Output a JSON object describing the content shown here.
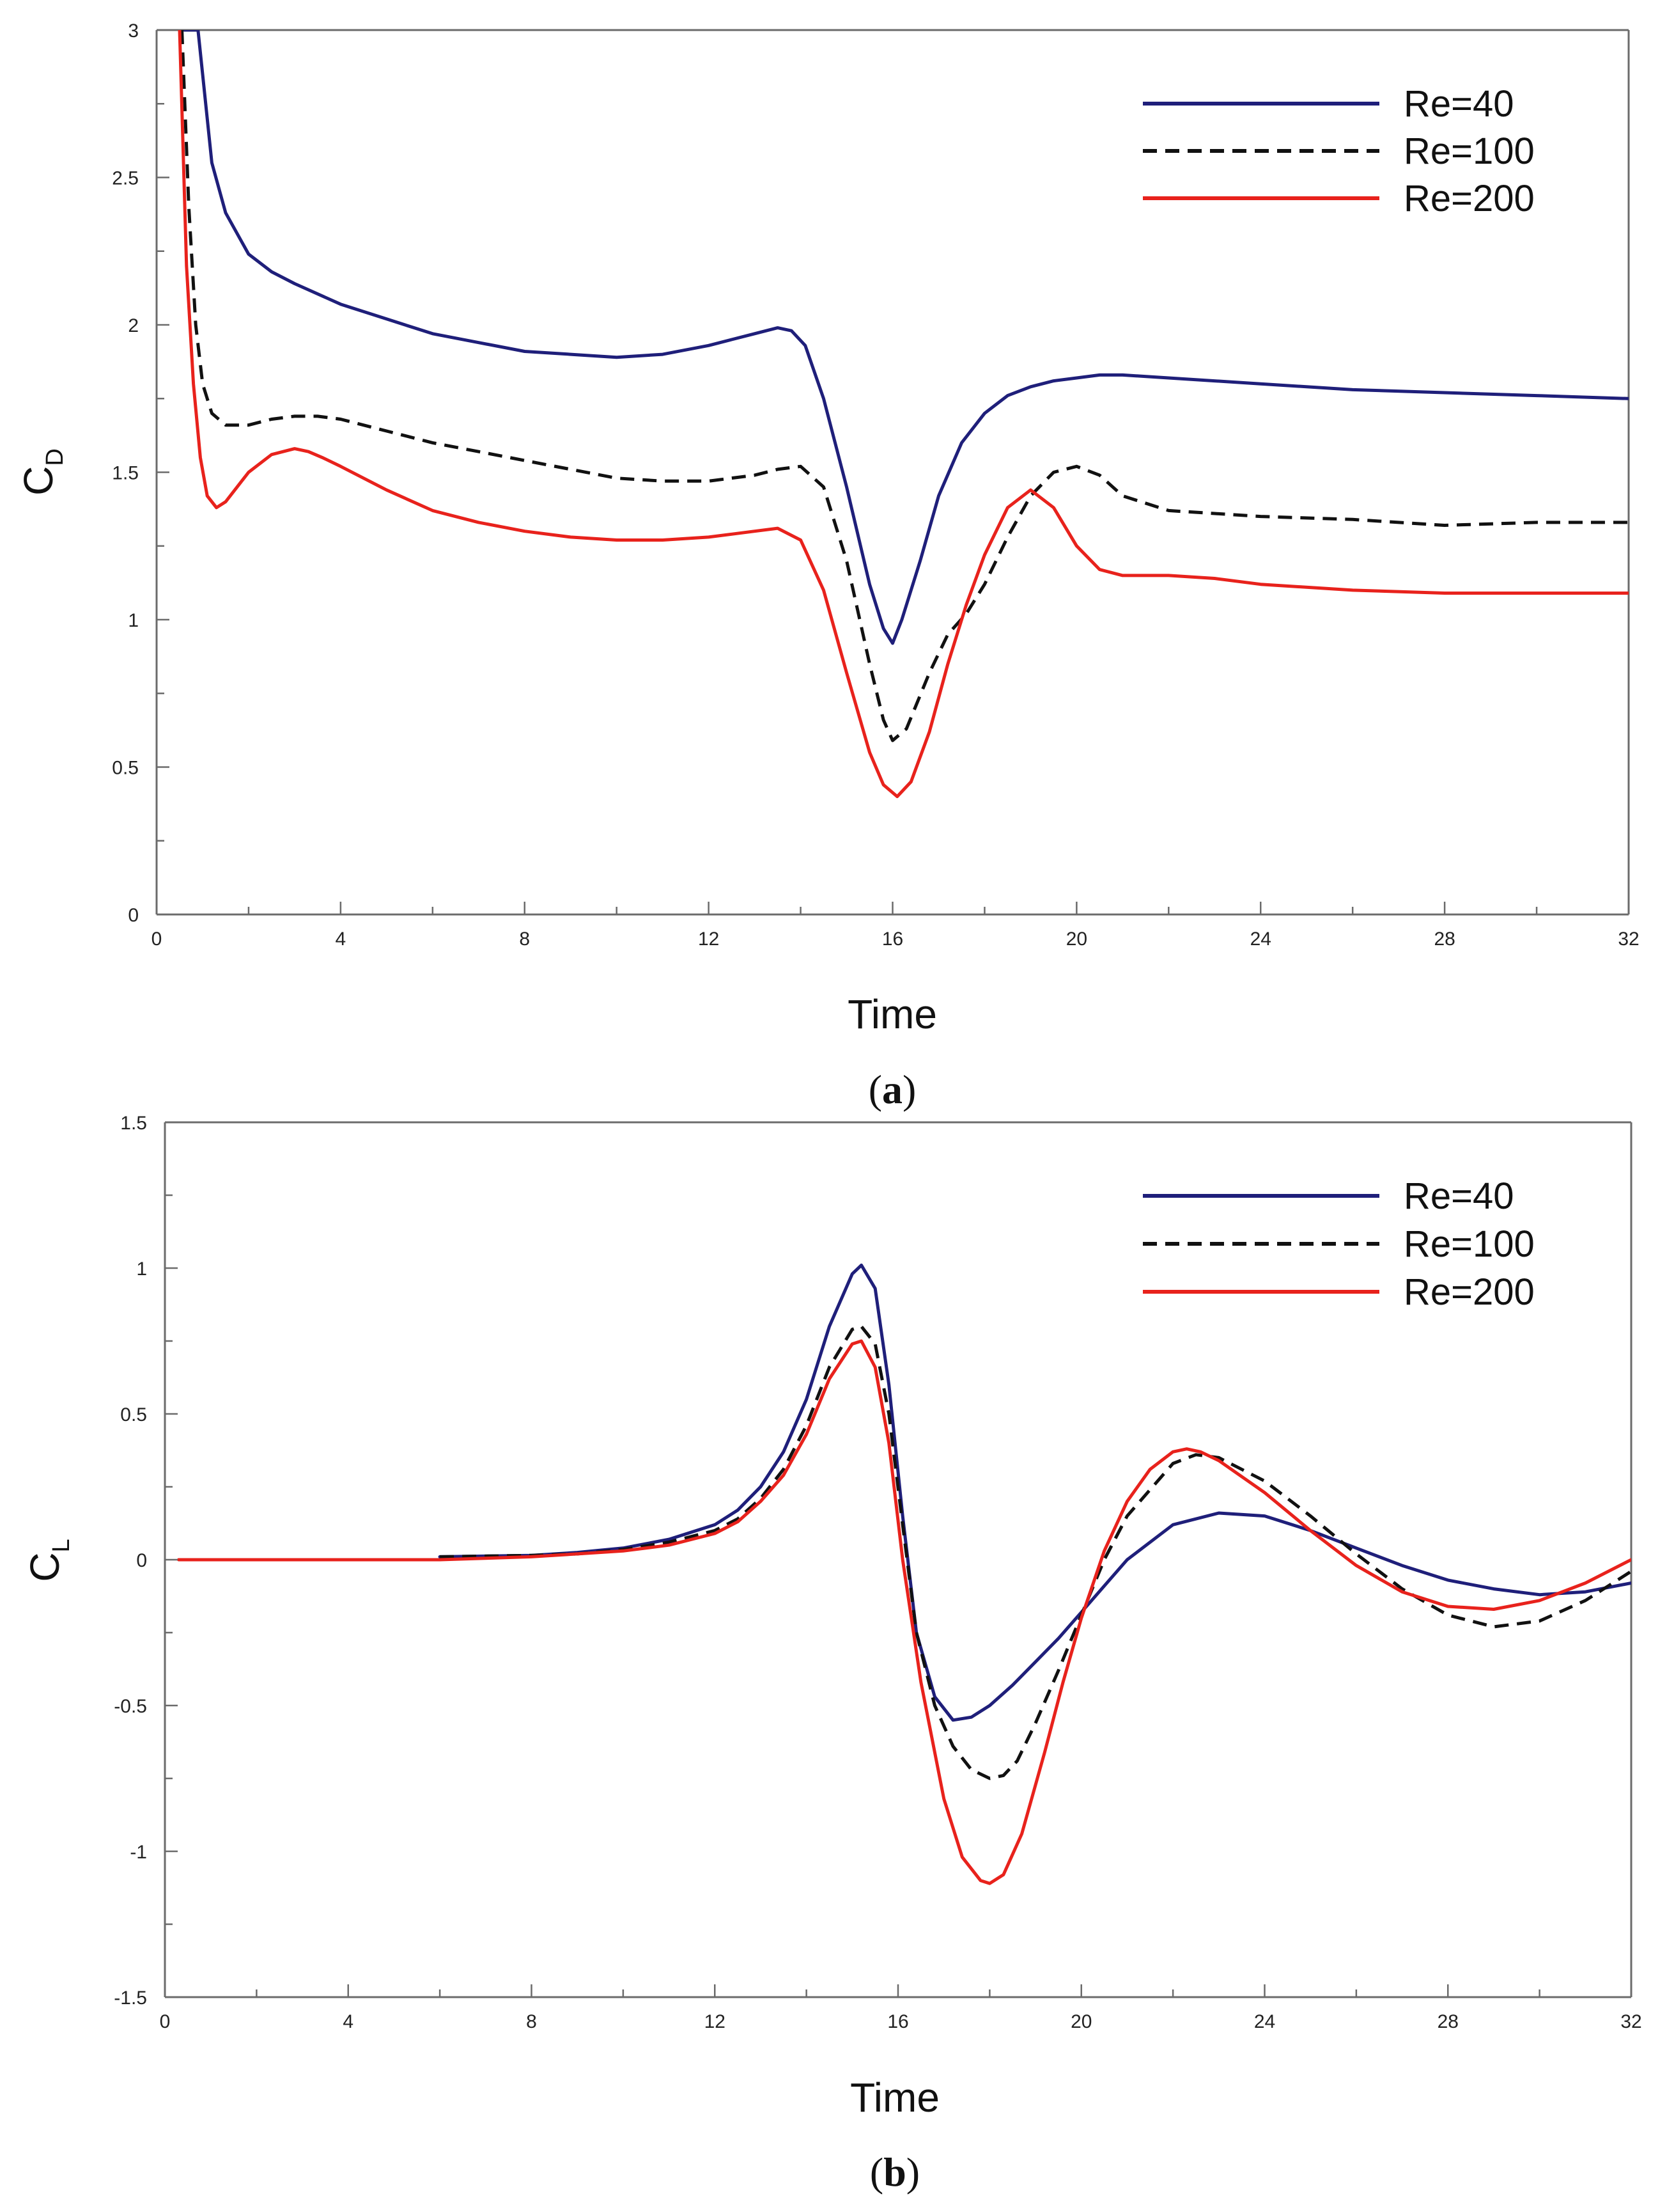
{
  "chart_data": [
    {
      "type": "line",
      "panel_label": "a",
      "title": "",
      "xlabel": "Time",
      "ylabel_main": "C",
      "ylabel_sub": "D",
      "xlim": [
        0,
        32
      ],
      "ylim": [
        0,
        3
      ],
      "xticks": [
        0,
        4,
        8,
        12,
        16,
        20,
        24,
        28,
        32
      ],
      "xtick_labels": [
        "0",
        "4",
        "8",
        "12",
        "16",
        "20",
        "24",
        "28",
        "32"
      ],
      "yticks": [
        0,
        0.5,
        1,
        1.5,
        2,
        2.5,
        3
      ],
      "ytick_labels": [
        "0",
        "0.5",
        "1",
        "1.5",
        "2",
        "2.5",
        "3"
      ],
      "legend_position": "top-right",
      "grid": false,
      "series": [
        {
          "name": "Re=40",
          "color": "#1f1f7a",
          "dash": "solid",
          "x": [
            0.6,
            0.75,
            0.9,
            1.0,
            1.2,
            1.5,
            2.0,
            2.5,
            3,
            4,
            5,
            6,
            7,
            8,
            9,
            10,
            11,
            12,
            12.5,
            13,
            13.5,
            13.8,
            14.1,
            14.5,
            15,
            15.5,
            15.8,
            16.0,
            16.2,
            16.6,
            17,
            17.5,
            18,
            18.5,
            19,
            19.5,
            20,
            20.5,
            21,
            22,
            24,
            26,
            28,
            30,
            32
          ],
          "y": [
            3.0,
            3.0,
            3.0,
            2.85,
            2.55,
            2.38,
            2.24,
            2.18,
            2.14,
            2.07,
            2.02,
            1.97,
            1.94,
            1.91,
            1.9,
            1.89,
            1.9,
            1.93,
            1.95,
            1.97,
            1.99,
            1.98,
            1.93,
            1.75,
            1.45,
            1.12,
            0.97,
            0.92,
            1.0,
            1.2,
            1.42,
            1.6,
            1.7,
            1.76,
            1.79,
            1.81,
            1.82,
            1.83,
            1.83,
            1.82,
            1.8,
            1.78,
            1.77,
            1.76,
            1.75
          ]
        },
        {
          "name": "Re=100",
          "color": "#111111",
          "dash": "dashed",
          "x": [
            0.55,
            0.7,
            0.85,
            1.0,
            1.2,
            1.5,
            2.0,
            2.5,
            3,
            3.5,
            4,
            5,
            6,
            7,
            8,
            9,
            10,
            11,
            12,
            12.5,
            13,
            13.5,
            14,
            14.5,
            15,
            15.5,
            15.8,
            16.0,
            16.3,
            16.8,
            17.2,
            17.6,
            18,
            18.5,
            19,
            19.5,
            20,
            20.5,
            21,
            22,
            23,
            24,
            26,
            28,
            30,
            32
          ],
          "y": [
            3.0,
            2.4,
            2.0,
            1.8,
            1.7,
            1.66,
            1.66,
            1.68,
            1.69,
            1.69,
            1.68,
            1.64,
            1.6,
            1.57,
            1.54,
            1.51,
            1.48,
            1.47,
            1.47,
            1.48,
            1.49,
            1.51,
            1.52,
            1.45,
            1.2,
            0.85,
            0.66,
            0.59,
            0.63,
            0.82,
            0.95,
            1.02,
            1.12,
            1.28,
            1.42,
            1.5,
            1.52,
            1.49,
            1.42,
            1.37,
            1.36,
            1.35,
            1.34,
            1.32,
            1.33,
            1.33
          ]
        },
        {
          "name": "Re=200",
          "color": "#e8221c",
          "dash": "solid",
          "x": [
            0.5,
            0.65,
            0.8,
            0.95,
            1.1,
            1.3,
            1.5,
            2.0,
            2.5,
            3,
            3.3,
            3.6,
            4,
            5,
            6,
            7,
            8,
            9,
            10,
            11,
            12,
            12.5,
            13,
            13.5,
            14,
            14.5,
            15,
            15.5,
            15.8,
            16.1,
            16.4,
            16.8,
            17.2,
            17.6,
            18,
            18.5,
            19,
            19.5,
            20,
            20.5,
            21,
            22,
            23,
            24,
            26,
            28,
            30,
            32
          ],
          "y": [
            3.0,
            2.2,
            1.8,
            1.55,
            1.42,
            1.38,
            1.4,
            1.5,
            1.56,
            1.58,
            1.57,
            1.55,
            1.52,
            1.44,
            1.37,
            1.33,
            1.3,
            1.28,
            1.27,
            1.27,
            1.28,
            1.29,
            1.3,
            1.31,
            1.27,
            1.1,
            0.82,
            0.55,
            0.44,
            0.4,
            0.45,
            0.62,
            0.85,
            1.05,
            1.22,
            1.38,
            1.44,
            1.38,
            1.25,
            1.17,
            1.15,
            1.15,
            1.14,
            1.12,
            1.1,
            1.09,
            1.09,
            1.09
          ]
        }
      ]
    },
    {
      "type": "line",
      "panel_label": "b",
      "title": "",
      "xlabel": "Time",
      "ylabel_main": "C",
      "ylabel_sub": "L",
      "xlim": [
        0,
        32
      ],
      "ylim": [
        -1.5,
        1.5
      ],
      "xticks": [
        0,
        4,
        8,
        12,
        16,
        20,
        24,
        28,
        32
      ],
      "xtick_labels": [
        "0",
        "4",
        "8",
        "12",
        "16",
        "20",
        "24",
        "28",
        "32"
      ],
      "yticks": [
        -1.5,
        -1,
        -0.5,
        0,
        0.5,
        1,
        1.5
      ],
      "ytick_labels": [
        "-1.5",
        "-1",
        "-0.5",
        "0",
        "0.5",
        "1",
        "1.5"
      ],
      "legend_position": "top-right",
      "grid": false,
      "series": [
        {
          "name": "Re=40",
          "color": "#1f1f7a",
          "dash": "solid",
          "x": [
            6,
            8,
            9,
            10,
            11,
            12,
            12.5,
            13,
            13.5,
            14,
            14.5,
            15,
            15.2,
            15.5,
            15.8,
            16.1,
            16.4,
            16.8,
            17.2,
            17.6,
            18,
            18.5,
            19,
            19.5,
            20,
            20.5,
            21,
            22,
            23,
            24,
            25,
            26,
            27,
            28,
            29,
            30,
            31,
            32
          ],
          "y": [
            0.01,
            0.015,
            0.025,
            0.04,
            0.07,
            0.12,
            0.17,
            0.25,
            0.37,
            0.55,
            0.8,
            0.98,
            1.01,
            0.93,
            0.6,
            0.15,
            -0.25,
            -0.47,
            -0.55,
            -0.54,
            -0.5,
            -0.43,
            -0.35,
            -0.27,
            -0.18,
            -0.09,
            0.0,
            0.12,
            0.16,
            0.15,
            0.1,
            0.04,
            -0.02,
            -0.07,
            -0.1,
            -0.12,
            -0.11,
            -0.08
          ]
        },
        {
          "name": "Re=100",
          "color": "#111111",
          "dash": "dashed",
          "x": [
            6,
            8,
            9,
            10,
            11,
            12,
            12.5,
            13,
            13.5,
            14,
            14.5,
            15,
            15.2,
            15.5,
            15.8,
            16.1,
            16.4,
            16.8,
            17.2,
            17.6,
            18,
            18.3,
            18.6,
            19,
            19.5,
            20,
            20.5,
            21,
            22,
            22.5,
            23,
            24,
            25,
            26,
            27,
            28,
            29,
            30,
            31,
            32
          ],
          "y": [
            0.01,
            0.015,
            0.02,
            0.035,
            0.06,
            0.1,
            0.14,
            0.21,
            0.31,
            0.46,
            0.66,
            0.79,
            0.8,
            0.74,
            0.5,
            0.12,
            -0.25,
            -0.5,
            -0.64,
            -0.72,
            -0.75,
            -0.74,
            -0.69,
            -0.56,
            -0.38,
            -0.19,
            0.0,
            0.15,
            0.33,
            0.36,
            0.35,
            0.27,
            0.15,
            0.02,
            -0.1,
            -0.19,
            -0.23,
            -0.21,
            -0.14,
            -0.04
          ]
        },
        {
          "name": "Re=200",
          "color": "#e8221c",
          "dash": "solid",
          "x": [
            0.3,
            6,
            8,
            9,
            10,
            11,
            12,
            12.5,
            13,
            13.5,
            14,
            14.5,
            15,
            15.2,
            15.5,
            15.8,
            16.1,
            16.5,
            17,
            17.4,
            17.8,
            18.0,
            18.3,
            18.7,
            19.2,
            19.6,
            20,
            20.5,
            21,
            21.5,
            22,
            22.3,
            22.6,
            23,
            24,
            25,
            26,
            27,
            28,
            29,
            30,
            31,
            32
          ],
          "y": [
            0.0,
            0.0,
            0.01,
            0.02,
            0.03,
            0.05,
            0.09,
            0.13,
            0.2,
            0.29,
            0.43,
            0.62,
            0.74,
            0.75,
            0.66,
            0.4,
            0.0,
            -0.42,
            -0.82,
            -1.02,
            -1.1,
            -1.11,
            -1.08,
            -0.94,
            -0.66,
            -0.42,
            -0.2,
            0.03,
            0.2,
            0.31,
            0.37,
            0.38,
            0.37,
            0.34,
            0.23,
            0.1,
            -0.02,
            -0.11,
            -0.16,
            -0.17,
            -0.14,
            -0.08,
            0.0
          ]
        }
      ]
    }
  ]
}
